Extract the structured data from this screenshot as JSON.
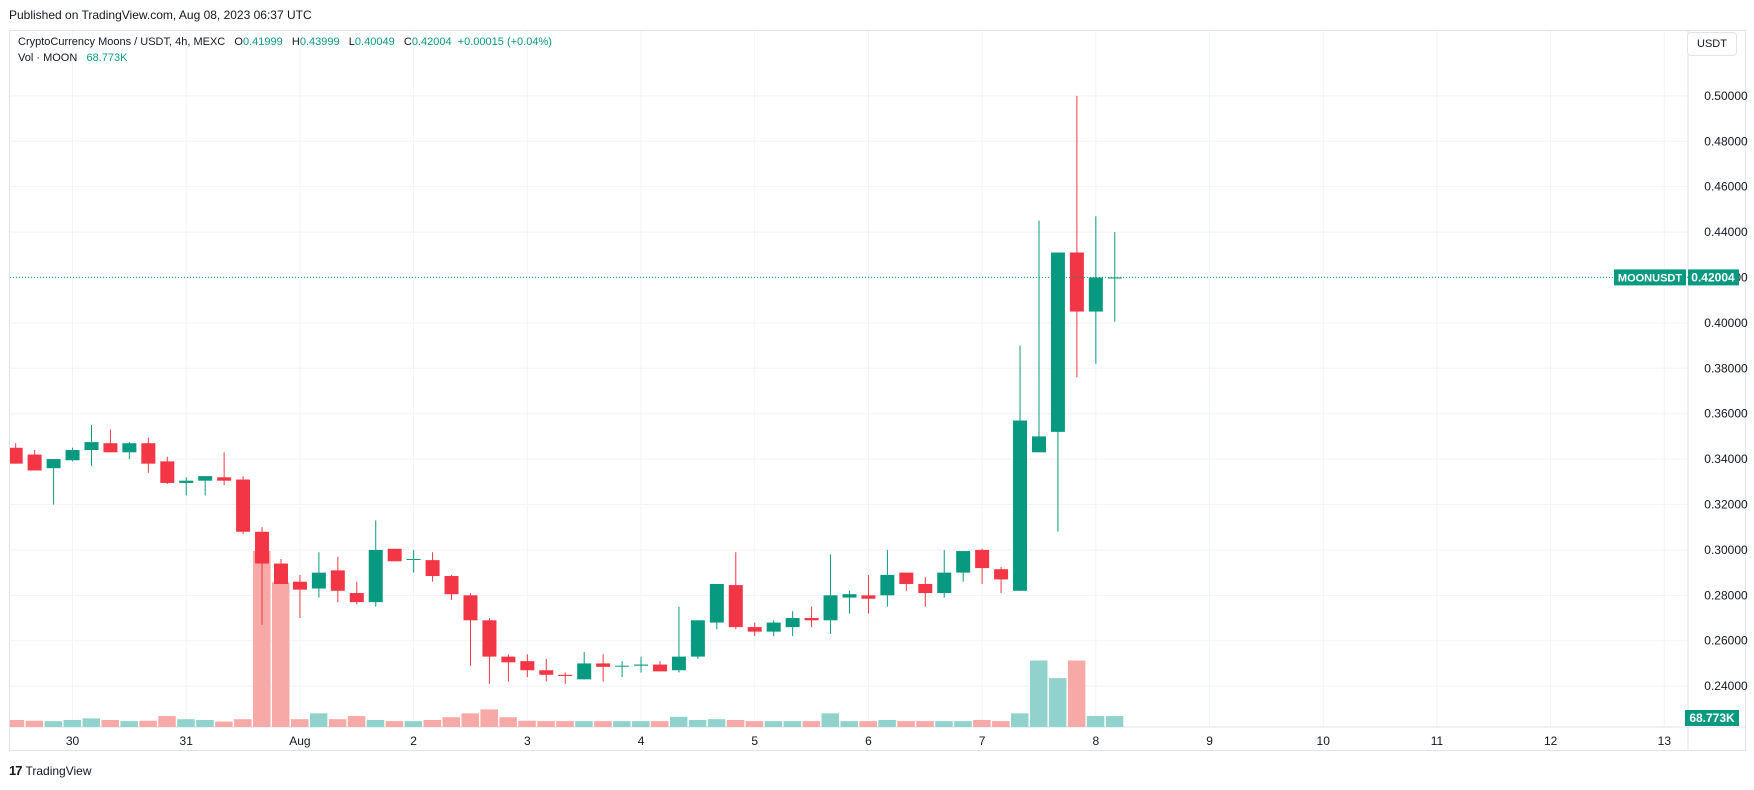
{
  "published": "Published on TradingView.com, Aug 08, 2023 06:37 UTC",
  "legend": {
    "symbol": "CryptoCurrency Moons / USDT, 4h, MEXC",
    "o_label": "O",
    "o_value": "0.41999",
    "h_label": "H",
    "h_value": "0.43999",
    "l_label": "L",
    "l_value": "0.40049",
    "c_label": "C",
    "c_value": "0.42004",
    "change": "+0.00015 (+0.04%)",
    "vol_label": "Vol · MOON",
    "vol_value": "68.773K"
  },
  "currency_button": "USDT",
  "footer_brand": "TradingView",
  "footer_logo": "17",
  "colors": {
    "up": "#089981",
    "down": "#f23645",
    "up_volume": "#92d2cc",
    "down_volume": "#f7a9a7",
    "grid": "#f0f3fa",
    "axis_text": "#131722",
    "last_price_label": "#089981"
  },
  "chart_data": {
    "type": "candlestick",
    "symbol_label": "MOONUSDT",
    "last_price": "0.42004",
    "last_volume": "68.773K",
    "y_ticks": [
      "0.24000",
      "0.26000",
      "0.28000",
      "0.30000",
      "0.32000",
      "0.34000",
      "0.36000",
      "0.38000",
      "0.40000",
      "0.42000",
      "0.44000",
      "0.46000",
      "0.48000",
      "0.50000"
    ],
    "ylim": [
      0.222,
      0.518
    ],
    "x_ticks": [
      {
        "label": "30",
        "index": 3
      },
      {
        "label": "31",
        "index": 9
      },
      {
        "label": "Aug",
        "index": 15
      },
      {
        "label": "2",
        "index": 21
      },
      {
        "label": "3",
        "index": 27
      },
      {
        "label": "4",
        "index": 33
      },
      {
        "label": "5",
        "index": 39
      },
      {
        "label": "6",
        "index": 45
      },
      {
        "label": "7",
        "index": 51
      },
      {
        "label": "8",
        "index": 57
      },
      {
        "label": "9",
        "index": 63
      },
      {
        "label": "10",
        "index": 69
      },
      {
        "label": "11",
        "index": 75
      },
      {
        "label": "12",
        "index": 81
      },
      {
        "label": "13",
        "index": 87
      }
    ],
    "x_range": [
      -0.3,
      89.4
    ],
    "candles": [
      {
        "o": 0.345,
        "h": 0.347,
        "l": 0.338,
        "c": 0.338
      },
      {
        "o": 0.342,
        "h": 0.344,
        "l": 0.335,
        "c": 0.335
      },
      {
        "o": 0.336,
        "h": 0.34,
        "l": 0.32,
        "c": 0.34
      },
      {
        "o": 0.3395,
        "h": 0.345,
        "l": 0.339,
        "c": 0.344
      },
      {
        "o": 0.344,
        "h": 0.355,
        "l": 0.337,
        "c": 0.3475
      },
      {
        "o": 0.347,
        "h": 0.353,
        "l": 0.343,
        "c": 0.343
      },
      {
        "o": 0.343,
        "h": 0.3475,
        "l": 0.34,
        "c": 0.347
      },
      {
        "o": 0.347,
        "h": 0.3495,
        "l": 0.334,
        "c": 0.338
      },
      {
        "o": 0.339,
        "h": 0.341,
        "l": 0.329,
        "c": 0.3295
      },
      {
        "o": 0.3295,
        "h": 0.332,
        "l": 0.324,
        "c": 0.3305
      },
      {
        "o": 0.3305,
        "h": 0.332,
        "l": 0.324,
        "c": 0.3325
      },
      {
        "o": 0.332,
        "h": 0.343,
        "l": 0.3285,
        "c": 0.3305
      },
      {
        "o": 0.331,
        "h": 0.3325,
        "l": 0.307,
        "c": 0.308
      },
      {
        "o": 0.308,
        "h": 0.31,
        "l": 0.267,
        "c": 0.294
      },
      {
        "o": 0.294,
        "h": 0.296,
        "l": 0.285,
        "c": 0.285
      },
      {
        "o": 0.286,
        "h": 0.289,
        "l": 0.27,
        "c": 0.2825
      },
      {
        "o": 0.283,
        "h": 0.299,
        "l": 0.279,
        "c": 0.29
      },
      {
        "o": 0.291,
        "h": 0.297,
        "l": 0.277,
        "c": 0.282
      },
      {
        "o": 0.281,
        "h": 0.286,
        "l": 0.276,
        "c": 0.277
      },
      {
        "o": 0.277,
        "h": 0.313,
        "l": 0.275,
        "c": 0.3
      },
      {
        "o": 0.3005,
        "h": 0.3005,
        "l": 0.295,
        "c": 0.295
      },
      {
        "o": 0.296,
        "h": 0.3,
        "l": 0.29,
        "c": 0.296
      },
      {
        "o": 0.2955,
        "h": 0.299,
        "l": 0.286,
        "c": 0.2885
      },
      {
        "o": 0.2885,
        "h": 0.289,
        "l": 0.278,
        "c": 0.2805
      },
      {
        "o": 0.28,
        "h": 0.281,
        "l": 0.249,
        "c": 0.269
      },
      {
        "o": 0.269,
        "h": 0.27,
        "l": 0.241,
        "c": 0.253
      },
      {
        "o": 0.253,
        "h": 0.254,
        "l": 0.242,
        "c": 0.2505
      },
      {
        "o": 0.251,
        "h": 0.254,
        "l": 0.244,
        "c": 0.247
      },
      {
        "o": 0.247,
        "h": 0.252,
        "l": 0.242,
        "c": 0.245
      },
      {
        "o": 0.245,
        "h": 0.246,
        "l": 0.241,
        "c": 0.2445
      },
      {
        "o": 0.243,
        "h": 0.255,
        "l": 0.243,
        "c": 0.25
      },
      {
        "o": 0.25,
        "h": 0.254,
        "l": 0.242,
        "c": 0.2485
      },
      {
        "o": 0.249,
        "h": 0.251,
        "l": 0.244,
        "c": 0.249
      },
      {
        "o": 0.249,
        "h": 0.253,
        "l": 0.246,
        "c": 0.2495
      },
      {
        "o": 0.2495,
        "h": 0.251,
        "l": 0.247,
        "c": 0.2465
      },
      {
        "o": 0.247,
        "h": 0.275,
        "l": 0.246,
        "c": 0.253
      },
      {
        "o": 0.253,
        "h": 0.269,
        "l": 0.252,
        "c": 0.269
      },
      {
        "o": 0.268,
        "h": 0.285,
        "l": 0.265,
        "c": 0.285
      },
      {
        "o": 0.2845,
        "h": 0.299,
        "l": 0.265,
        "c": 0.266
      },
      {
        "o": 0.266,
        "h": 0.268,
        "l": 0.262,
        "c": 0.264
      },
      {
        "o": 0.264,
        "h": 0.269,
        "l": 0.262,
        "c": 0.268
      },
      {
        "o": 0.266,
        "h": 0.273,
        "l": 0.262,
        "c": 0.27
      },
      {
        "o": 0.27,
        "h": 0.275,
        "l": 0.266,
        "c": 0.269
      },
      {
        "o": 0.269,
        "h": 0.298,
        "l": 0.263,
        "c": 0.28
      },
      {
        "o": 0.279,
        "h": 0.282,
        "l": 0.272,
        "c": 0.2805
      },
      {
        "o": 0.28,
        "h": 0.289,
        "l": 0.272,
        "c": 0.2785
      },
      {
        "o": 0.28,
        "h": 0.3,
        "l": 0.275,
        "c": 0.289
      },
      {
        "o": 0.29,
        "h": 0.29,
        "l": 0.282,
        "c": 0.285
      },
      {
        "o": 0.285,
        "h": 0.288,
        "l": 0.275,
        "c": 0.281
      },
      {
        "o": 0.281,
        "h": 0.3,
        "l": 0.279,
        "c": 0.29
      },
      {
        "o": 0.29,
        "h": 0.299,
        "l": 0.286,
        "c": 0.2995
      },
      {
        "o": 0.3,
        "h": 0.3005,
        "l": 0.285,
        "c": 0.292
      },
      {
        "o": 0.2915,
        "h": 0.2925,
        "l": 0.281,
        "c": 0.287
      },
      {
        "o": 0.282,
        "h": 0.39,
        "l": 0.282,
        "c": 0.357
      },
      {
        "o": 0.343,
        "h": 0.445,
        "l": 0.343,
        "c": 0.35
      },
      {
        "o": 0.352,
        "h": 0.43,
        "l": 0.308,
        "c": 0.431
      },
      {
        "o": 0.431,
        "h": 0.5,
        "l": 0.376,
        "c": 0.405
      },
      {
        "o": 0.405,
        "h": 0.447,
        "l": 0.382,
        "c": 0.42
      },
      {
        "o": 0.42,
        "h": 0.44,
        "l": 0.4005,
        "c": 0.42
      }
    ],
    "volumes": [
      {
        "v": 1.8,
        "up": false
      },
      {
        "v": 1.6,
        "up": false
      },
      {
        "v": 1.5,
        "up": true
      },
      {
        "v": 1.8,
        "up": true
      },
      {
        "v": 2.2,
        "up": true
      },
      {
        "v": 1.8,
        "up": false
      },
      {
        "v": 1.5,
        "up": true
      },
      {
        "v": 1.6,
        "up": false
      },
      {
        "v": 2.8,
        "up": false
      },
      {
        "v": 2.0,
        "up": true
      },
      {
        "v": 1.8,
        "up": true
      },
      {
        "v": 1.4,
        "up": false
      },
      {
        "v": 2.0,
        "up": false
      },
      {
        "v": 45.0,
        "up": false
      },
      {
        "v": 37.0,
        "up": false
      },
      {
        "v": 2.0,
        "up": false
      },
      {
        "v": 3.5,
        "up": true
      },
      {
        "v": 2.0,
        "up": false
      },
      {
        "v": 2.8,
        "up": false
      },
      {
        "v": 1.8,
        "up": true
      },
      {
        "v": 1.5,
        "up": false
      },
      {
        "v": 1.5,
        "up": true
      },
      {
        "v": 1.8,
        "up": false
      },
      {
        "v": 2.5,
        "up": false
      },
      {
        "v": 3.5,
        "up": false
      },
      {
        "v": 4.5,
        "up": false
      },
      {
        "v": 2.5,
        "up": false
      },
      {
        "v": 1.6,
        "up": false
      },
      {
        "v": 1.5,
        "up": false
      },
      {
        "v": 1.5,
        "up": false
      },
      {
        "v": 1.5,
        "up": true
      },
      {
        "v": 1.5,
        "up": false
      },
      {
        "v": 1.5,
        "up": true
      },
      {
        "v": 1.5,
        "up": true
      },
      {
        "v": 1.5,
        "up": false
      },
      {
        "v": 2.6,
        "up": true
      },
      {
        "v": 1.8,
        "up": true
      },
      {
        "v": 2.0,
        "up": true
      },
      {
        "v": 1.8,
        "up": false
      },
      {
        "v": 1.5,
        "up": false
      },
      {
        "v": 1.5,
        "up": true
      },
      {
        "v": 1.5,
        "up": true
      },
      {
        "v": 1.5,
        "up": false
      },
      {
        "v": 3.5,
        "up": true
      },
      {
        "v": 1.5,
        "up": true
      },
      {
        "v": 1.5,
        "up": false
      },
      {
        "v": 1.8,
        "up": true
      },
      {
        "v": 1.5,
        "up": false
      },
      {
        "v": 1.5,
        "up": false
      },
      {
        "v": 1.5,
        "up": true
      },
      {
        "v": 1.5,
        "up": true
      },
      {
        "v": 1.8,
        "up": false
      },
      {
        "v": 1.5,
        "up": false
      },
      {
        "v": 3.5,
        "up": true
      },
      {
        "v": 17.0,
        "up": true
      },
      {
        "v": 12.5,
        "up": true
      },
      {
        "v": 17.0,
        "up": false
      },
      {
        "v": 2.8,
        "up": true
      },
      {
        "v": 2.8,
        "up": true
      }
    ]
  }
}
